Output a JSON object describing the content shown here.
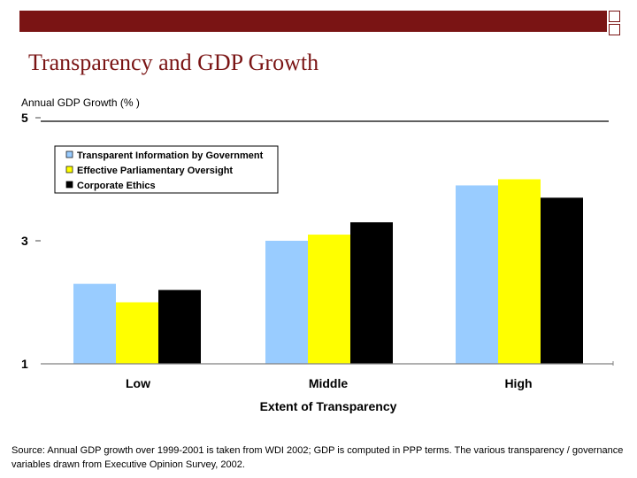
{
  "slide": {
    "title": "Transparency and GDP Growth",
    "source": "Source: Annual GDP growth over 1999-2001 is taken from WDI 2002;  GDP is computed in PPP terms.  The various transparency / governance variables drawn from Executive Opinion Survey, 2002."
  },
  "colors": {
    "accent": "#7a1414",
    "series": [
      "#99ccff",
      "#ffff00",
      "#000000"
    ]
  },
  "chart_data": {
    "type": "bar",
    "title": "",
    "ylabel": "Annual GDP  Growth (% )",
    "xlabel": "Extent of Transparency",
    "categories": [
      "Low",
      "Middle",
      "High"
    ],
    "series": [
      {
        "name": "Transparent Information by Government",
        "values": [
          2.3,
          3.0,
          3.9
        ]
      },
      {
        "name": "Effective Parliamentary Oversight",
        "values": [
          2.0,
          3.1,
          4.0
        ]
      },
      {
        "name": "Corporate Ethics",
        "values": [
          2.2,
          3.3,
          3.7
        ]
      }
    ],
    "ylim": [
      1,
      5
    ],
    "yticks": [
      "5",
      "3",
      "1"
    ],
    "legend_position": "top-left",
    "grid": false
  }
}
